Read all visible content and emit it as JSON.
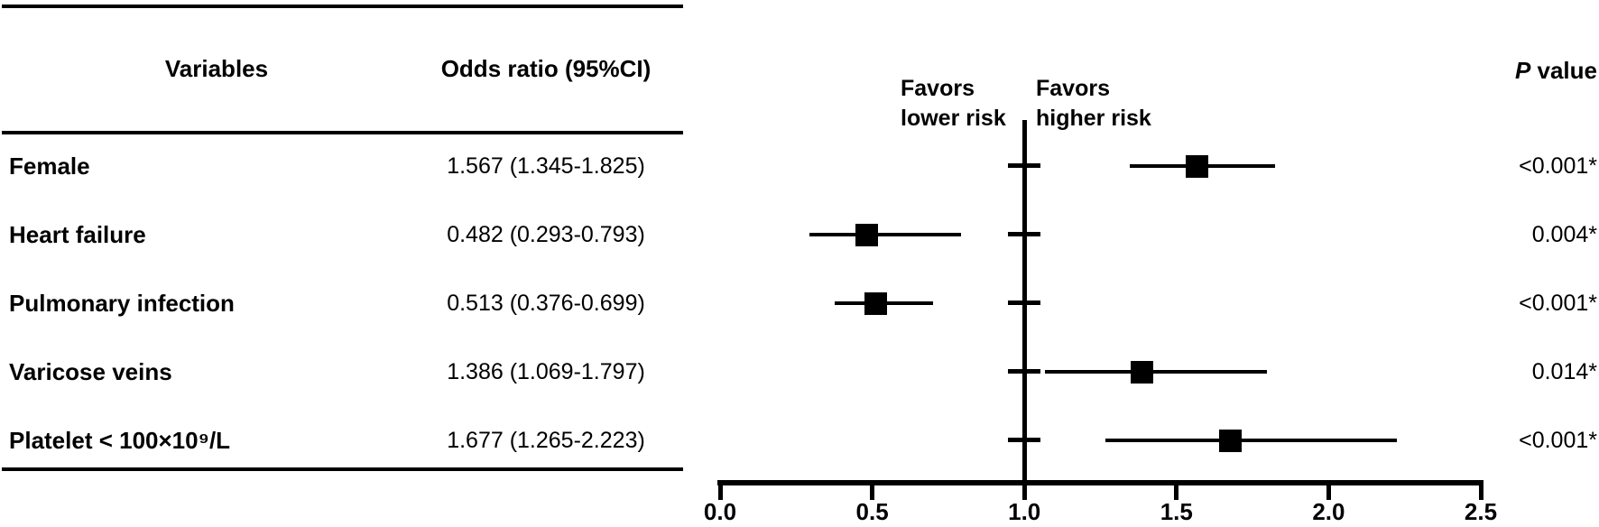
{
  "table": {
    "headers": {
      "variables": "Variables",
      "odds_ratio": "Odds ratio (95%CI)",
      "p_italic": "P",
      "p_rest": " value"
    },
    "rows": [
      {
        "label": "Female",
        "or_text": "1.567 (1.345-1.825)",
        "or": 1.567,
        "ci_low": 1.345,
        "ci_high": 1.825,
        "p_value": "<0.001*"
      },
      {
        "label": "Heart failure",
        "or_text": "0.482 (0.293-0.793)",
        "or": 0.482,
        "ci_low": 0.293,
        "ci_high": 0.793,
        "p_value": "0.004*"
      },
      {
        "label": "Pulmonary infection",
        "or_text": "0.513 (0.376-0.699)",
        "or": 0.513,
        "ci_low": 0.376,
        "ci_high": 0.699,
        "p_value": "<0.001*"
      },
      {
        "label": "Varicose veins",
        "or_text": "1.386 (1.069-1.797)",
        "or": 1.386,
        "ci_low": 1.069,
        "ci_high": 1.797,
        "p_value": "0.014*"
      },
      {
        "label": "Platelet < 100×10⁹/L",
        "or_text": "1.677 (1.265-2.223)",
        "or": 1.677,
        "ci_low": 1.265,
        "ci_high": 2.223,
        "p_value": "<0.001*"
      }
    ]
  },
  "plot": {
    "favors_lower": {
      "line1": "Favors",
      "line2": "lower risk"
    },
    "favors_higher": {
      "line1": "Favors",
      "line2": "higher risk"
    }
  },
  "chart_data": {
    "type": "scatter",
    "subtype": "forest-plot",
    "categories": [
      "Female",
      "Heart failure",
      "Pulmonary infection",
      "Varicose veins",
      "Platelet < 100×10⁹/L"
    ],
    "series": [
      {
        "name": "Odds ratio (95%CI)",
        "values": [
          1.567,
          0.482,
          0.513,
          1.386,
          1.677
        ],
        "ci_low": [
          1.345,
          0.293,
          0.376,
          1.069,
          1.265
        ],
        "ci_high": [
          1.825,
          0.793,
          0.699,
          1.797,
          2.223
        ]
      }
    ],
    "p_values": [
      "<0.001*",
      "0.004*",
      "<0.001*",
      "0.014*",
      "<0.001*"
    ],
    "x_ticks": [
      "0.0",
      "0.5",
      "1.0",
      "1.5",
      "2.0",
      "2.5"
    ],
    "xlim": [
      0,
      2.5
    ],
    "reference_line": 1.0,
    "annotations": [
      "Favors lower risk",
      "Favors higher risk"
    ],
    "marker": "filled-square",
    "grid": false,
    "color": "#000000"
  }
}
